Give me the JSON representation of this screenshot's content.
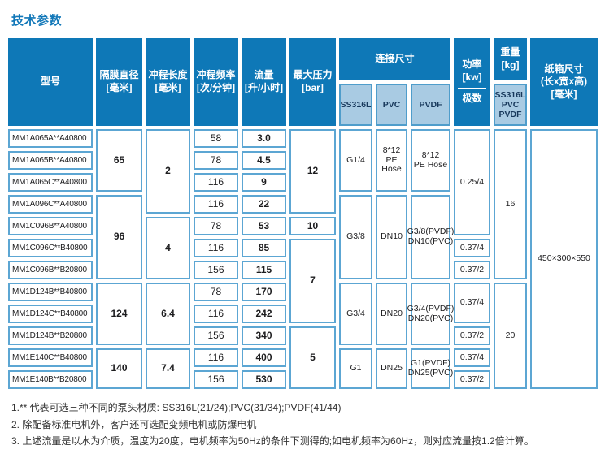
{
  "page_title": "技术参数",
  "table": {
    "header": {
      "model": "型号",
      "diaphragm": "隔膜直径\n[毫米]",
      "stroke": "冲程长度\n[毫米]",
      "frequency": "冲程频率\n[次/分钟]",
      "flow": "流量\n[升/小时]",
      "pressure": "最大压力\n[bar]",
      "connection": "连接尺寸",
      "connection_sub": [
        "SS316L",
        "PVC",
        "PVDF"
      ],
      "power": "功率\n[kw]",
      "power_sub": "极数",
      "weight": "重量\n[kg]",
      "weight_sub": "SS316L\nPVC\nPVDF",
      "carton": "纸箱尺寸\n(长x宽x高)\n[毫米]"
    },
    "rows": [
      {
        "model": "MM1A065A**A40800",
        "frequency": "58",
        "flow": "3.0"
      },
      {
        "model": "MM1A065B**A40800",
        "frequency": "78",
        "flow": "4.5"
      },
      {
        "model": "MM1A065C**A40800",
        "frequency": "116",
        "flow": "9"
      },
      {
        "model": "MM1A096C**A40800",
        "frequency": "116",
        "flow": "22"
      },
      {
        "model": "MM1C096B**A40800",
        "frequency": "78",
        "flow": "53"
      },
      {
        "model": "MM1C096C**B40800",
        "frequency": "116",
        "flow": "85"
      },
      {
        "model": "MM1C096B**B20800",
        "frequency": "156",
        "flow": "115"
      },
      {
        "model": "MM1D124B**B40800",
        "frequency": "78",
        "flow": "170"
      },
      {
        "model": "MM1D124C**B40800",
        "frequency": "116",
        "flow": "242"
      },
      {
        "model": "MM1D124B**B20800",
        "frequency": "156",
        "flow": "340"
      },
      {
        "model": "MM1E140C**B40800",
        "frequency": "116",
        "flow": "400"
      },
      {
        "model": "MM1E140B**B20800",
        "frequency": "156",
        "flow": "530"
      }
    ],
    "diaphragm_groups": [
      {
        "value": "65",
        "rows": "1-3"
      },
      {
        "value": "96",
        "rows": "4-7"
      },
      {
        "value": "124",
        "rows": "8-10"
      },
      {
        "value": "140",
        "rows": "11-12"
      }
    ],
    "stroke_groups": [
      {
        "value": "2",
        "rows": "1-4"
      },
      {
        "value": "4",
        "rows": "5-7"
      },
      {
        "value": "6.4",
        "rows": "8-10"
      },
      {
        "value": "7.4",
        "rows": "11-12"
      }
    ],
    "pressure_groups": [
      {
        "value": "12",
        "rows": "1-4"
      },
      {
        "value": "10",
        "rows": "5"
      },
      {
        "value": "7",
        "rows": "6-9"
      },
      {
        "value": "5",
        "rows": "10-12"
      }
    ],
    "connection_groups": [
      {
        "ss316l": "G1/4",
        "pvc": "8*12\nPE\nHose",
        "pvdf": "8*12\nPE Hose",
        "rows": "1-3"
      },
      {
        "ss316l": "G3/8",
        "pvc": "DN10",
        "pvdf": "G3/8(PVDF)\nDN10(PVC)",
        "rows": "4-7"
      },
      {
        "ss316l": "G3/4",
        "pvc": "DN20",
        "pvdf": "G3/4(PVDF)\nDN20(PVC)",
        "rows": "8-10"
      },
      {
        "ss316l": "G1",
        "pvc": "DN25",
        "pvdf": "G1(PVDF)\nDN25(PVC)",
        "rows": "11-12"
      }
    ],
    "power_groups": [
      {
        "value": "0.25/4",
        "rows": "1-5"
      },
      {
        "value": "0.37/4",
        "rows": "6"
      },
      {
        "value": "0.37/2",
        "rows": "7"
      },
      {
        "value": "0.37/4",
        "rows": "8-9"
      },
      {
        "value": "0.37/2",
        "rows": "10"
      },
      {
        "value": "0.37/4",
        "rows": "11"
      },
      {
        "value": "0.37/2",
        "rows": "12"
      }
    ],
    "weight_groups": [
      {
        "value": "16",
        "rows": "1-7"
      },
      {
        "value": "20",
        "rows": "8-12"
      }
    ],
    "carton_groups": [
      {
        "value": "450×300×550",
        "rows": "1-12"
      }
    ]
  },
  "footnotes": [
    "1.** 代表可选三种不同的泵头材质: SS316L(21/24);PVC(31/34);PVDF(41/44)",
    "2. 除配备标准电机外，客户还可选配变频电机或防爆电机",
    "3. 上述流量是以水为介质，温度为20度，电机频率为50Hz的条件下测得的;如电机频率为60Hz，则对应流量按1.2倍计算。"
  ],
  "colors": {
    "header_blue": "#0e78b7",
    "subheader_blue": "#a9cbe3",
    "cell_border_blue": "#5ca6d3",
    "title_blue": "#1177b8"
  }
}
